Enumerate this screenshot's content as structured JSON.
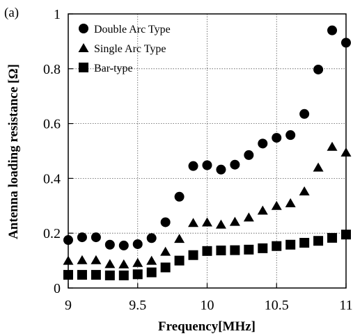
{
  "panel_label": "(a)",
  "chart_data": {
    "type": "scatter",
    "xlabel": "Frequency[MHz]",
    "ylabel": "Antenna loading resistance [Ω]",
    "xlim": [
      9,
      11
    ],
    "ylim": [
      0,
      1
    ],
    "xticks": [
      "9",
      "9.5",
      "10",
      "10.5",
      "11"
    ],
    "yticks": [
      "0",
      "0.2",
      "0.4",
      "0.6",
      "0.8",
      "1"
    ],
    "grid": "dotted",
    "legend_position": "top-left",
    "x": [
      9.0,
      9.1,
      9.2,
      9.3,
      9.4,
      9.5,
      9.6,
      9.7,
      9.8,
      9.9,
      10.0,
      10.1,
      10.2,
      10.3,
      10.4,
      10.5,
      10.6,
      10.7,
      10.8,
      10.9,
      11.0
    ],
    "series": [
      {
        "name": "Double Arc Type",
        "marker": "circle",
        "values": [
          0.175,
          0.185,
          0.185,
          0.158,
          0.155,
          0.16,
          0.182,
          0.24,
          0.333,
          0.445,
          0.448,
          0.432,
          0.45,
          0.485,
          0.527,
          0.548,
          0.558,
          0.635,
          0.797,
          0.94,
          0.895
        ]
      },
      {
        "name": "Single Arc Type",
        "marker": "triangle",
        "values": [
          0.1,
          0.102,
          0.102,
          0.088,
          0.087,
          0.092,
          0.1,
          0.133,
          0.18,
          0.238,
          0.24,
          0.232,
          0.242,
          0.258,
          0.283,
          0.3,
          0.31,
          0.353,
          0.44,
          0.516,
          0.495
        ]
      },
      {
        "name": "Bar-type",
        "marker": "square",
        "values": [
          0.048,
          0.048,
          0.048,
          0.046,
          0.046,
          0.05,
          0.057,
          0.075,
          0.1,
          0.12,
          0.135,
          0.137,
          0.138,
          0.14,
          0.145,
          0.153,
          0.158,
          0.165,
          0.172,
          0.183,
          0.195
        ]
      }
    ]
  }
}
